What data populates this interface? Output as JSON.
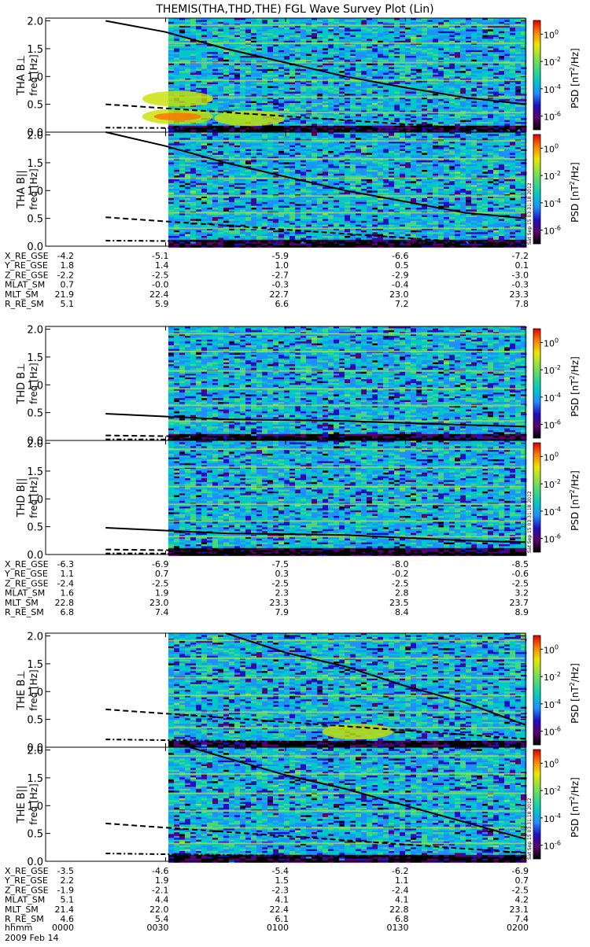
{
  "title": "THEMIS(THA,THD,THE) FGL Wave Survey Plot (Lin)",
  "colors": {
    "spectrogram_stops": [
      "#000000",
      "#5a006a",
      "#2010c0",
      "#1e90ff",
      "#00c8c8",
      "#40d880",
      "#90e040",
      "#e8e800",
      "#ff8000",
      "#e00000"
    ],
    "cyclotron_line": "#000000"
  },
  "freq_axis_label": "freq [Hz]",
  "freq_ticks": [
    "0.0",
    "0.5",
    "1.0",
    "1.5",
    "2.0"
  ],
  "colorbar": {
    "label_main": "PSD [nT",
    "label_sup": "2",
    "label_tail": "/Hz]",
    "ticks": [
      {
        "base": "10",
        "exp": "0"
      },
      {
        "base": "10",
        "exp": "-2"
      },
      {
        "base": "10",
        "exp": "-4"
      },
      {
        "base": "10",
        "exp": "-6"
      }
    ]
  },
  "stamp": "Sat Sep 15 03:31:18 2012",
  "ephem_labels": [
    "X_RE_GSE",
    "Y_RE_GSE",
    "Z_RE_GSE",
    "MLAT_SM",
    "MLT_SM",
    "R_RE_SM"
  ],
  "blocks": [
    {
      "panels": [
        "THA B⊥",
        "THA B||"
      ],
      "ephem_values": [
        [
          "-4.2",
          "-5.1",
          "-5.9",
          "-6.6",
          "-7.2"
        ],
        [
          "1.8",
          "1.4",
          "1.0",
          "0.5",
          "0.1"
        ],
        [
          "-2.2",
          "-2.5",
          "-2.7",
          "-2.9",
          "-3.0"
        ],
        [
          "0.7",
          "-0.0",
          "-0.3",
          "-0.4",
          "-0.3"
        ],
        [
          "21.9",
          "22.4",
          "22.7",
          "23.0",
          "23.3"
        ],
        [
          "5.1",
          "5.9",
          "6.6",
          "7.2",
          "7.8"
        ]
      ]
    },
    {
      "panels": [
        "THD B⊥",
        "THD B||"
      ],
      "ephem_values": [
        [
          "-6.3",
          "-6.9",
          "-7.5",
          "-8.0",
          "-8.5"
        ],
        [
          "1.1",
          "0.7",
          "0.3",
          "-0.2",
          "-0.6"
        ],
        [
          "-2.4",
          "-2.5",
          "-2.5",
          "-2.5",
          "-2.5"
        ],
        [
          "1.6",
          "1.9",
          "2.3",
          "2.8",
          "3.2"
        ],
        [
          "22.8",
          "23.0",
          "23.3",
          "23.5",
          "23.7"
        ],
        [
          "6.8",
          "7.4",
          "7.9",
          "8.4",
          "8.9"
        ]
      ]
    },
    {
      "panels": [
        "THE B⊥",
        "THE B||"
      ],
      "ephem_values": [
        [
          "-3.5",
          "-4.6",
          "-5.4",
          "-6.2",
          "-6.9"
        ],
        [
          "2.2",
          "1.9",
          "1.5",
          "1.1",
          "0.7"
        ],
        [
          "-1.9",
          "-2.1",
          "-2.3",
          "-2.4",
          "-2.5"
        ],
        [
          "5.1",
          "4.4",
          "4.1",
          "4.1",
          "4.2"
        ],
        [
          "21.4",
          "22.0",
          "22.4",
          "22.8",
          "23.1"
        ],
        [
          "4.6",
          "5.4",
          "6.1",
          "6.8",
          "7.4"
        ]
      ]
    }
  ],
  "time_label": "hhmm",
  "time_ticks": [
    "0000",
    "0030",
    "0100",
    "0130",
    "0200"
  ],
  "date_label": "2009 Feb 14",
  "chart_data": {
    "type": "heatmap",
    "title": "THEMIS(THA,THD,THE) FGL Wave Survey Plot (Lin)",
    "xlabel": "hhmm",
    "ylabel": "freq [Hz]",
    "ylim": [
      0,
      2.0
    ],
    "x_ticks": [
      "0000",
      "0030",
      "0100",
      "0130",
      "0200"
    ],
    "data_start_hhmm": "0015",
    "colorbar_label": "PSD [nT^2/Hz]",
    "colorbar_scale": "log",
    "colorbar_range": [
      1e-07,
      10
    ],
    "panels": [
      {
        "name": "THA B⊥",
        "cyclotron_line": [
          [
            0.25,
            2.0
          ],
          [
            0.5,
            1.8
          ],
          [
            0.75,
            1.5
          ],
          [
            1.0,
            1.25
          ],
          [
            1.25,
            1.0
          ],
          [
            1.5,
            0.8
          ],
          [
            1.75,
            0.62
          ],
          [
            2.0,
            0.5
          ]
        ],
        "dashed_line": [
          [
            0.25,
            0.5
          ],
          [
            2.0,
            0.0
          ]
        ],
        "dash_dot_line": [
          [
            0.25,
            0.08
          ],
          [
            2.0,
            0.04
          ]
        ],
        "enhancements": [
          {
            "x": 0.55,
            "y": 0.6,
            "level": 1
          },
          {
            "x": 0.55,
            "y": 0.28,
            "level": 2
          },
          {
            "x": 0.85,
            "y": 0.25,
            "level": 1
          }
        ]
      },
      {
        "name": "THA B||",
        "cyclotron_line": [
          [
            0.25,
            2.05
          ],
          [
            0.5,
            1.8
          ],
          [
            0.75,
            1.5
          ],
          [
            1.0,
            1.25
          ],
          [
            1.25,
            1.0
          ],
          [
            1.5,
            0.8
          ],
          [
            1.75,
            0.6
          ],
          [
            2.0,
            0.5
          ]
        ],
        "dashed_line": [
          [
            0.25,
            0.52
          ],
          [
            2.0,
            0.0
          ]
        ],
        "dash_dot_line": [
          [
            0.25,
            0.1
          ],
          [
            2.0,
            0.05
          ]
        ],
        "enhancements": []
      },
      {
        "name": "THD B⊥",
        "cyclotron_line": [
          [
            0.25,
            0.48
          ],
          [
            0.75,
            0.38
          ],
          [
            1.25,
            0.35
          ],
          [
            1.75,
            0.28
          ],
          [
            2.0,
            0.25
          ]
        ],
        "dashed_line": [
          [
            0.25,
            0.09
          ],
          [
            2.0,
            0.0
          ]
        ],
        "dash_dot_line": [
          [
            0.25,
            0.02
          ],
          [
            2.0,
            0.01
          ]
        ],
        "enhancements": []
      },
      {
        "name": "THD B||",
        "cyclotron_line": [
          [
            0.25,
            0.48
          ],
          [
            0.75,
            0.38
          ],
          [
            1.25,
            0.35
          ],
          [
            1.75,
            0.25
          ],
          [
            2.0,
            0.22
          ]
        ],
        "dashed_line": [
          [
            0.25,
            0.09
          ],
          [
            2.0,
            0.0
          ]
        ],
        "dash_dot_line": [
          [
            0.25,
            0.02
          ],
          [
            2.0,
            0.01
          ]
        ],
        "enhancements": []
      },
      {
        "name": "THE B⊥",
        "cyclotron_line": [
          [
            0.75,
            2.05
          ],
          [
            1.0,
            1.7
          ],
          [
            1.25,
            1.45
          ],
          [
            1.5,
            1.1
          ],
          [
            1.75,
            0.8
          ],
          [
            2.0,
            0.4
          ]
        ],
        "dashed_line": [
          [
            0.25,
            0.68
          ],
          [
            2.0,
            0.15
          ]
        ],
        "dash_dot_line": [
          [
            0.25,
            0.14
          ],
          [
            2.0,
            0.05
          ]
        ],
        "enhancements": [
          {
            "x": 1.3,
            "y": 0.28,
            "level": 1
          }
        ]
      },
      {
        "name": "THE B||",
        "cyclotron_line": [
          [
            0.6,
            2.05
          ],
          [
            1.0,
            1.55
          ],
          [
            1.25,
            1.3
          ],
          [
            1.5,
            1.0
          ],
          [
            1.75,
            0.7
          ],
          [
            2.0,
            0.4
          ]
        ],
        "dashed_line": [
          [
            0.25,
            0.68
          ],
          [
            2.0,
            0.15
          ]
        ],
        "dash_dot_line": [
          [
            0.25,
            0.14
          ],
          [
            2.0,
            0.05
          ]
        ],
        "enhancements": []
      }
    ]
  }
}
